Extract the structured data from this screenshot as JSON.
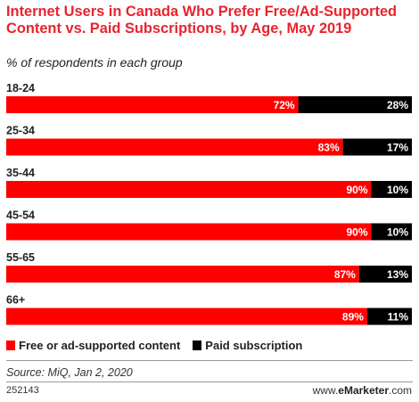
{
  "title": "Internet Users in Canada Who Prefer Free/Ad-Supported Content vs. Paid Subscriptions, by Age, May 2019",
  "subtitle": "% of respondents in each group",
  "legend": {
    "free": "Free or ad-supported content",
    "paid": "Paid subscription"
  },
  "source": "Source: MiQ, Jan 2, 2020",
  "code": "252143",
  "brand": {
    "prefix": "www.",
    "name": "eMarketer",
    "suffix": ".com"
  },
  "colors": {
    "free": "#ff0000",
    "paid": "#000000",
    "title": "#e8242e"
  },
  "chart_data": {
    "type": "bar",
    "orientation": "horizontal",
    "stacked": true,
    "title": "Internet Users in Canada Who Prefer Free/Ad-Supported Content vs. Paid Subscriptions, by Age, May 2019",
    "subtitle": "% of respondents in each group",
    "categories": [
      "18-24",
      "25-34",
      "35-44",
      "45-54",
      "55-65",
      "66+"
    ],
    "series": [
      {
        "name": "Free or ad-supported content",
        "values": [
          72,
          83,
          90,
          90,
          87,
          89
        ],
        "labels": [
          "72%",
          "83%",
          "90%",
          "90%",
          "87%",
          "89%"
        ]
      },
      {
        "name": "Paid subscription",
        "values": [
          28,
          17,
          10,
          10,
          13,
          11
        ],
        "labels": [
          "28%",
          "17%",
          "10%",
          "10%",
          "13%",
          "11%"
        ]
      }
    ],
    "xlim": [
      0,
      100
    ],
    "legend": "bottom-left",
    "grid": false
  }
}
